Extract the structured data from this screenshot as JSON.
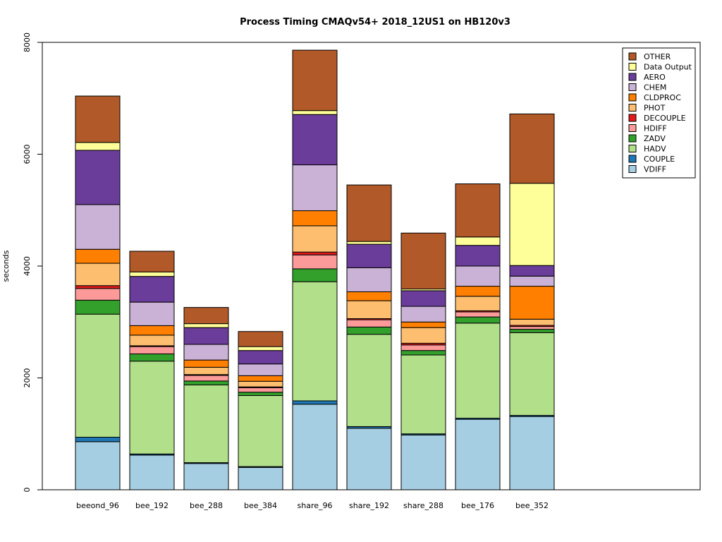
{
  "chart_data": {
    "type": "bar",
    "stacked": true,
    "title": "Process Timing CMAQv54+ 2018_12US1 on HB120v3",
    "xlabel": "",
    "ylabel": "seconds",
    "ylim": [
      0,
      8000
    ],
    "yticks": [
      0,
      2000,
      4000,
      6000,
      8000
    ],
    "grid": false,
    "legend_position": "top-right",
    "categories": [
      "beeond_96",
      "bee_192",
      "bee_288",
      "bee_384",
      "share_96",
      "share_192",
      "share_288",
      "bee_176",
      "bee_352"
    ],
    "series": [
      {
        "name": "VDIFF",
        "color": "#a6cee3",
        "values": [
          860,
          620,
          470,
          400,
          1530,
          1100,
          980,
          1260,
          1310
        ]
      },
      {
        "name": "COUPLE",
        "color": "#1f78b4",
        "values": [
          80,
          20,
          15,
          15,
          60,
          30,
          20,
          20,
          20
        ]
      },
      {
        "name": "HADV",
        "color": "#b2df8a",
        "values": [
          2200,
          1660,
          1390,
          1270,
          2130,
          1650,
          1410,
          1700,
          1480
        ]
      },
      {
        "name": "ZADV",
        "color": "#33a02c",
        "values": [
          250,
          130,
          70,
          60,
          230,
          130,
          80,
          110,
          60
        ]
      },
      {
        "name": "HDIFF",
        "color": "#fb9a99",
        "values": [
          210,
          130,
          100,
          80,
          250,
          130,
          100,
          90,
          50
        ]
      },
      {
        "name": "DECOUPLE",
        "color": "#e31a1c",
        "values": [
          50,
          15,
          15,
          15,
          50,
          20,
          30,
          20,
          20
        ]
      },
      {
        "name": "PHOT",
        "color": "#fdbf6f",
        "values": [
          400,
          190,
          130,
          100,
          470,
          320,
          280,
          260,
          110
        ]
      },
      {
        "name": "CLDPROC",
        "color": "#ff7f00",
        "values": [
          250,
          170,
          130,
          100,
          270,
          160,
          100,
          180,
          590
        ]
      },
      {
        "name": "CHEM",
        "color": "#cab2d6",
        "values": [
          800,
          420,
          280,
          210,
          820,
          430,
          280,
          360,
          180
        ]
      },
      {
        "name": "AERO",
        "color": "#6a3d9a",
        "values": [
          970,
          460,
          300,
          240,
          900,
          420,
          280,
          370,
          190
        ]
      },
      {
        "name": "Data Output",
        "color": "#ffff99",
        "values": [
          140,
          80,
          70,
          70,
          70,
          50,
          30,
          150,
          1470
        ]
      },
      {
        "name": "OTHER",
        "color": "#b15928",
        "values": [
          830,
          370,
          290,
          270,
          1080,
          1010,
          1000,
          950,
          1240
        ]
      }
    ]
  }
}
